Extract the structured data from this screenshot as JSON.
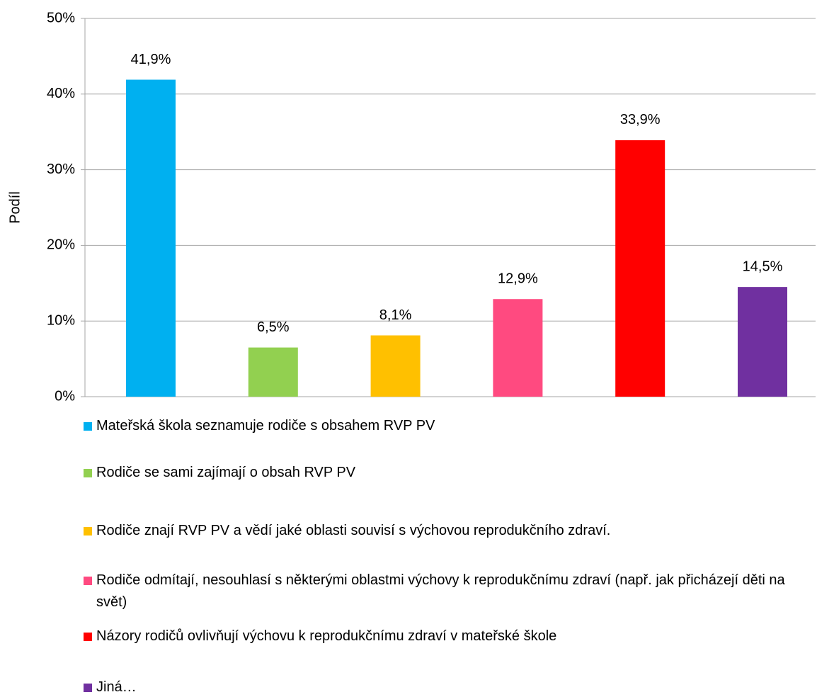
{
  "chart_data": {
    "type": "bar",
    "ylabel": "Podíl",
    "categories": [
      "Mateřská škola seznamuje rodiče s obsahem RVP PV",
      "Rodiče se sami zajímají o obsah RVP PV",
      "Rodiče znají RVP PV a vědí jaké oblasti souvisí s výchovou reprodukčního zdraví.",
      "Rodiče odmítají, nesouhlasí s některými oblastmi výchovy k reprodukčnímu zdraví (např. jak přicházejí děti na svět)",
      "Názory rodičů ovlivňují výchovu k reprodukčnímu zdraví v mateřské škole",
      "Jiná…"
    ],
    "values": [
      41.9,
      6.5,
      8.1,
      12.9,
      33.9,
      14.5
    ],
    "value_labels": [
      "41,9%",
      "6,5%",
      "8,1%",
      "12,9%",
      "33,9%",
      "14,5%"
    ],
    "colors": [
      "#00b0f0",
      "#92d050",
      "#ffc000",
      "#ff4a80",
      "#ff0000",
      "#7030a0"
    ],
    "ylim": [
      0,
      50
    ],
    "yticks": [
      {
        "value": 0,
        "label": "0%"
      },
      {
        "value": 10,
        "label": "10%"
      },
      {
        "value": 20,
        "label": "20%"
      },
      {
        "value": 30,
        "label": "30%"
      },
      {
        "value": 40,
        "label": "40%"
      },
      {
        "value": 50,
        "label": "50%"
      }
    ],
    "grid": true
  }
}
